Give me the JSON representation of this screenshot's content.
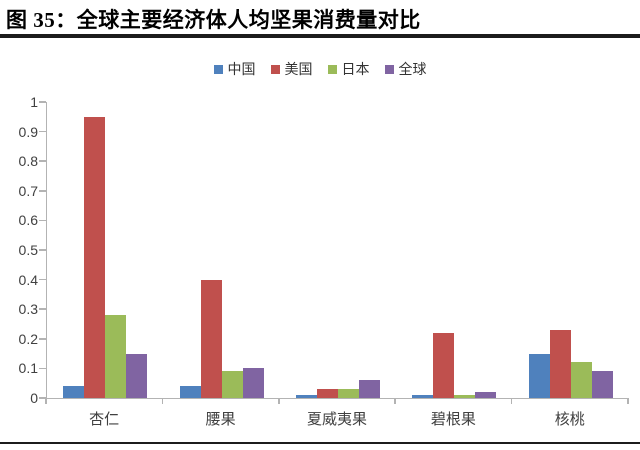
{
  "header": {
    "title": "图 35：全球主要经济体人均坚果消费量对比"
  },
  "chart_data": {
    "type": "bar",
    "title": "全球主要经济体人均坚果消费量对比",
    "categories": [
      "杏仁",
      "腰果",
      "夏威夷果",
      "碧根果",
      "核桃"
    ],
    "series": [
      {
        "name": "中国",
        "color": "#4F81BD",
        "values": [
          0.04,
          0.04,
          0.01,
          0.01,
          0.15
        ]
      },
      {
        "name": "美国",
        "color": "#C0504D",
        "values": [
          0.95,
          0.4,
          0.03,
          0.22,
          0.23
        ]
      },
      {
        "name": "日本",
        "color": "#9BBB59",
        "values": [
          0.28,
          0.09,
          0.03,
          0.01,
          0.12
        ]
      },
      {
        "name": "全球",
        "color": "#8064A2",
        "values": [
          0.15,
          0.1,
          0.06,
          0.02,
          0.09
        ]
      }
    ],
    "xlabel": "",
    "ylabel": "",
    "ylim": [
      0,
      1
    ],
    "ytick_step": 0.1,
    "yticks": [
      "0",
      "0.1",
      "0.2",
      "0.3",
      "0.4",
      "0.5",
      "0.6",
      "0.7",
      "0.8",
      "0.9",
      "1"
    ],
    "legend_position": "top-center",
    "grid": false,
    "axis_color": "#b3b3b3"
  }
}
